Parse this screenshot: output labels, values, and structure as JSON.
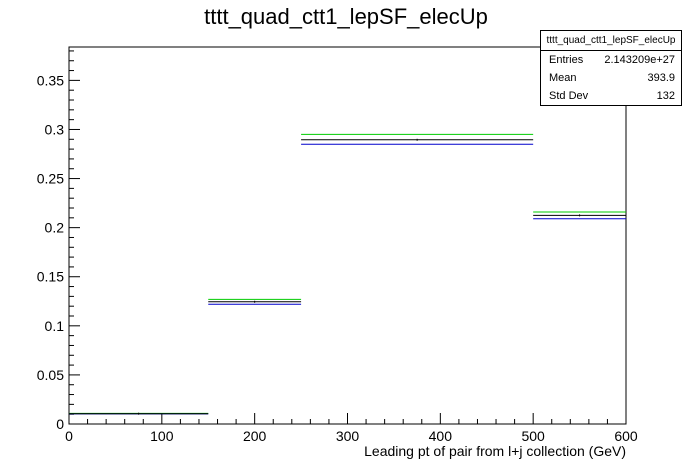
{
  "chart_data": {
    "type": "histogram",
    "title": "tttt_quad_ctt1_lepSF_elecUp",
    "xlabel": "Leading pt of pair from l+j collection (GeV)",
    "ylabel": "",
    "xlim": [
      0,
      600
    ],
    "ylim": [
      0,
      0.384
    ],
    "x_ticks": [
      0,
      100,
      200,
      300,
      400,
      500,
      600
    ],
    "y_ticks": [
      0,
      0.05,
      0.1,
      0.15,
      0.2,
      0.25,
      0.3,
      0.35
    ],
    "bins": [
      {
        "low": 0,
        "high": 150,
        "value": 0.0105
      },
      {
        "low": 150,
        "high": 250,
        "value": 0.1245
      },
      {
        "low": 250,
        "high": 500,
        "value": 0.2895
      },
      {
        "low": 500,
        "high": 600,
        "value": 0.2125
      }
    ],
    "variation_up": [
      0.0108,
      0.127,
      0.295,
      0.216
    ],
    "variation_down": [
      0.0103,
      0.122,
      0.285,
      0.209
    ],
    "colors": {
      "nominal": "#000000",
      "up": "#00cc00",
      "down": "#0000cc"
    },
    "grid": false,
    "legend": "none"
  },
  "stats": {
    "name": "tttt_quad_ctt1_lepSF_elecUp",
    "entries_label": "Entries",
    "entries_value": "2.143209e+27",
    "mean_label": "Mean",
    "mean_value": "393.9",
    "stddev_label": "Std Dev",
    "stddev_value": "132"
  }
}
